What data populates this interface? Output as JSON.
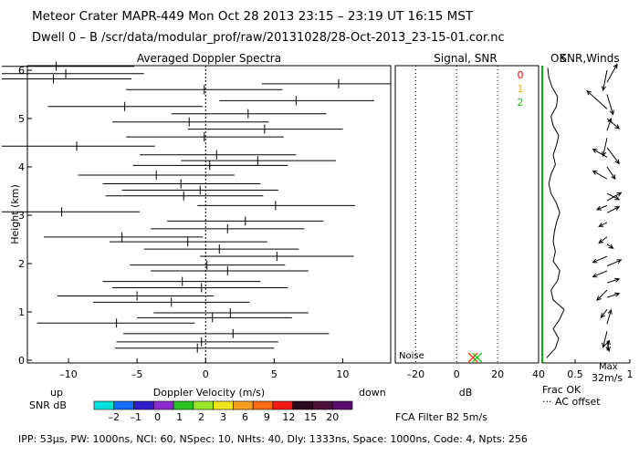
{
  "header": {
    "title_line": "Meteor Crater   MAPR-449   Mon Oct 28 2013 23:15 – 23:19 UT 16:15 MST",
    "dwell_line": "Dwell   0 –   B    /scr/data/modular_prof/raw/20131028/28-Oct-2013_23-15-01.cor.nc"
  },
  "footer": {
    "params_line": "IPP:  53µs,   PW: 1000ns,   NCI:  60,   NSpec: 10,  NHts: 40,   Dly: 1333ns,   Space: 1000ns,   Code: 4,   Npts: 256"
  },
  "colors": {
    "snr_scale": [
      "#00e0e0",
      "#1a6cff",
      "#2e1cc8",
      "#8a2cd0",
      "#29c423",
      "#9ae62a",
      "#f0e31f",
      "#f5a01e",
      "#ff6a15",
      "#f21818",
      "#2a0a1c",
      "#4b0f38",
      "#5a0d6e"
    ],
    "ok_markers": [
      "#ff0000",
      "#ffa500",
      "#22c422"
    ],
    "frac_ok_line": "#00b000"
  },
  "chart_data": [
    {
      "type": "scatter",
      "panel": "doppler",
      "title": "Averaged Doppler Spectra",
      "xlabel": "Doppler Velocity (m/s)",
      "ylabel": "Height (km)",
      "xlim": [
        -13,
        13.5
      ],
      "ylim": [
        0,
        6.15
      ],
      "xticks": [
        -10,
        -5,
        0,
        5,
        10
      ],
      "yticks": [
        0,
        1,
        2,
        3,
        4,
        5,
        6
      ],
      "xtick_labels": [
        "–10",
        "–5",
        "0",
        "5",
        "10"
      ],
      "ytick_labels": [
        "0",
        "1",
        "2",
        "3",
        "4",
        "5",
        "6"
      ],
      "direction_labels": {
        "left": "up",
        "right": "down"
      },
      "points": [
        {
          "h": 0.25,
          "v": -0.6,
          "lo": -6.6,
          "hi": 5.0
        },
        {
          "h": 0.38,
          "v": -0.3,
          "lo": -6.5,
          "hi": 5.3
        },
        {
          "h": 0.55,
          "v": 2.0,
          "lo": -6.0,
          "hi": 9.0
        },
        {
          "h": 0.77,
          "v": -6.5,
          "lo": -12.3,
          "hi": -0.8
        },
        {
          "h": 0.88,
          "v": 0.5,
          "lo": -5.0,
          "hi": 6.3
        },
        {
          "h": 0.98,
          "v": 1.8,
          "lo": -3.8,
          "hi": 7.5
        },
        {
          "h": 1.2,
          "v": -2.5,
          "lo": -8.2,
          "hi": 3.2
        },
        {
          "h": 1.33,
          "v": -5.0,
          "lo": -10.8,
          "hi": 0.6
        },
        {
          "h": 1.5,
          "v": -0.3,
          "lo": -6.8,
          "hi": 6.0
        },
        {
          "h": 1.63,
          "v": -1.7,
          "lo": -7.5,
          "hi": 4.0
        },
        {
          "h": 1.85,
          "v": 1.6,
          "lo": -4.0,
          "hi": 7.5
        },
        {
          "h": 1.97,
          "v": 0.1,
          "lo": -5.5,
          "hi": 5.8
        },
        {
          "h": 2.15,
          "v": 5.2,
          "lo": -0.4,
          "hi": 10.8
        },
        {
          "h": 2.3,
          "v": 1.0,
          "lo": -4.5,
          "hi": 6.8
        },
        {
          "h": 2.45,
          "v": -1.3,
          "lo": -7.0,
          "hi": 4.5
        },
        {
          "h": 2.55,
          "v": -6.1,
          "lo": -11.8,
          "hi": -0.2
        },
        {
          "h": 2.72,
          "v": 1.6,
          "lo": -4.0,
          "hi": 7.2
        },
        {
          "h": 2.88,
          "v": 2.9,
          "lo": -2.8,
          "hi": 8.6
        },
        {
          "h": 3.07,
          "v": -10.5,
          "lo": -16.5,
          "hi": -4.8
        },
        {
          "h": 3.2,
          "v": 5.1,
          "lo": -0.6,
          "hi": 10.9
        },
        {
          "h": 3.4,
          "v": -1.6,
          "lo": -7.3,
          "hi": 4.2
        },
        {
          "h": 3.52,
          "v": -0.4,
          "lo": -6.1,
          "hi": 5.3
        },
        {
          "h": 3.65,
          "v": -1.8,
          "lo": -7.5,
          "hi": 4.0
        },
        {
          "h": 3.83,
          "v": -3.6,
          "lo": -9.3,
          "hi": 2.1
        },
        {
          "h": 4.03,
          "v": 0.3,
          "lo": -5.3,
          "hi": 6.0
        },
        {
          "h": 4.13,
          "v": 3.8,
          "lo": -1.8,
          "hi": 9.5
        },
        {
          "h": 4.25,
          "v": 0.8,
          "lo": -4.8,
          "hi": 6.6
        },
        {
          "h": 4.43,
          "v": -9.4,
          "lo": -15.0,
          "hi": -3.7
        },
        {
          "h": 4.62,
          "v": -0.1,
          "lo": -5.8,
          "hi": 5.7
        },
        {
          "h": 4.78,
          "v": 4.3,
          "lo": -1.3,
          "hi": 10.0
        },
        {
          "h": 4.93,
          "v": -1.2,
          "lo": -6.8,
          "hi": 4.6
        },
        {
          "h": 5.1,
          "v": 3.1,
          "lo": -2.5,
          "hi": 8.8
        },
        {
          "h": 5.25,
          "v": -5.9,
          "lo": -11.5,
          "hi": -0.2
        },
        {
          "h": 5.37,
          "v": 6.6,
          "lo": 1.0,
          "hi": 12.3
        },
        {
          "h": 5.6,
          "v": -0.1,
          "lo": -5.8,
          "hi": 5.6
        },
        {
          "h": 5.72,
          "v": 9.7,
          "lo": 4.1,
          "hi": 15.4
        },
        {
          "h": 5.82,
          "v": -11.1,
          "lo": -16.8,
          "hi": -5.4
        },
        {
          "h": 5.93,
          "v": -10.2,
          "lo": -15.8,
          "hi": -4.5
        },
        {
          "h": 6.08,
          "v": -10.9,
          "lo": -16.5,
          "hi": -5.2
        }
      ]
    },
    {
      "type": "line",
      "panel": "snr",
      "title": "Signal, SNR",
      "xlabel": "dB",
      "xlim": [
        -30,
        40
      ],
      "ylim": [
        0,
        6.15
      ],
      "xticks": [
        -20,
        0,
        20,
        40
      ],
      "xtick_labels": [
        "–20",
        "0",
        "20",
        "40"
      ],
      "noise_label": "Noise",
      "noise_markers": [
        {
          "x": 8,
          "color": "#ff3b00"
        },
        {
          "x": 10,
          "color": "#22c422"
        }
      ],
      "ok_labels": [
        "0",
        "1",
        "2"
      ],
      "ok_header": "OK"
    },
    {
      "type": "line",
      "panel": "frac_ok_winds",
      "title": "SNR,Winds",
      "xlabel": "Frac OK",
      "xlim": [
        0.2,
        1.0
      ],
      "xticks": [
        0.5,
        1
      ],
      "xtick_labels": [
        "0.5",
        "1"
      ],
      "legend_dashed": "AC offset",
      "max_label": "Max",
      "max_value_label": "32m/s",
      "frac_ok": [
        {
          "h": 0.05,
          "x": 0.24
        },
        {
          "h": 0.25,
          "x": 0.32
        },
        {
          "h": 0.45,
          "x": 0.35
        },
        {
          "h": 0.65,
          "x": 0.3
        },
        {
          "h": 0.85,
          "x": 0.36
        },
        {
          "h": 1.05,
          "x": 0.4
        },
        {
          "h": 1.25,
          "x": 0.3
        },
        {
          "h": 1.45,
          "x": 0.28
        },
        {
          "h": 1.65,
          "x": 0.34
        },
        {
          "h": 1.85,
          "x": 0.36
        },
        {
          "h": 2.05,
          "x": 0.3
        },
        {
          "h": 2.25,
          "x": 0.32
        },
        {
          "h": 2.45,
          "x": 0.3
        },
        {
          "h": 2.65,
          "x": 0.31
        },
        {
          "h": 2.85,
          "x": 0.33
        },
        {
          "h": 3.05,
          "x": 0.36
        },
        {
          "h": 3.25,
          "x": 0.33
        },
        {
          "h": 3.45,
          "x": 0.28
        },
        {
          "h": 3.65,
          "x": 0.26
        },
        {
          "h": 3.85,
          "x": 0.28
        },
        {
          "h": 4.05,
          "x": 0.32
        },
        {
          "h": 4.25,
          "x": 0.3
        },
        {
          "h": 4.45,
          "x": 0.33
        },
        {
          "h": 4.65,
          "x": 0.35
        },
        {
          "h": 4.85,
          "x": 0.3
        },
        {
          "h": 5.05,
          "x": 0.28
        },
        {
          "h": 5.25,
          "x": 0.33
        },
        {
          "h": 5.45,
          "x": 0.34
        },
        {
          "h": 5.65,
          "x": 0.29
        },
        {
          "h": 5.85,
          "x": 0.26
        },
        {
          "h": 6.05,
          "x": 0.25
        }
      ],
      "wind_vectors": [
        {
          "h": 6.0,
          "u": -0.2,
          "v": 1.0
        },
        {
          "h": 5.75,
          "u": 0.5,
          "v": -0.9
        },
        {
          "h": 5.5,
          "u": 0.3,
          "v": 1.0
        },
        {
          "h": 5.2,
          "u": -1.0,
          "v": -0.9
        },
        {
          "h": 5.0,
          "u": 0.6,
          "v": 0.5
        },
        {
          "h": 4.75,
          "u": 0.2,
          "v": -0.6
        },
        {
          "h": 4.6,
          "u": -0.2,
          "v": 0.9
        },
        {
          "h": 4.4,
          "u": 0.6,
          "v": 0.8
        },
        {
          "h": 4.2,
          "u": -0.7,
          "v": -0.4
        },
        {
          "h": 4.0,
          "u": 0.4,
          "v": 0.6
        },
        {
          "h": 3.75,
          "u": -0.7,
          "v": -0.4
        },
        {
          "h": 3.45,
          "u": 0.6,
          "v": 0.3
        },
        {
          "h": 3.3,
          "u": 0.7,
          "v": -0.4
        },
        {
          "h": 3.2,
          "u": -0.5,
          "v": 0.2
        },
        {
          "h": 3.05,
          "u": 0.6,
          "v": -0.3
        },
        {
          "h": 2.85,
          "u": -0.4,
          "v": 0.2
        },
        {
          "h": 2.55,
          "u": -0.4,
          "v": 0.3
        },
        {
          "h": 2.4,
          "u": 0.3,
          "v": 0.2
        },
        {
          "h": 2.15,
          "u": -0.7,
          "v": 0.3
        },
        {
          "h": 1.95,
          "u": 0.7,
          "v": -0.3
        },
        {
          "h": 1.85,
          "u": -0.7,
          "v": 0.3
        },
        {
          "h": 1.6,
          "u": 0.6,
          "v": -0.2
        },
        {
          "h": 1.45,
          "u": -0.5,
          "v": 0.5
        },
        {
          "h": 1.3,
          "u": 0.6,
          "v": -0.2
        },
        {
          "h": 1.05,
          "u": -0.3,
          "v": 0.4
        },
        {
          "h": 0.75,
          "u": 0.2,
          "v": -0.7
        },
        {
          "h": 0.6,
          "u": -0.2,
          "v": 0.8
        },
        {
          "h": 0.4,
          "u": 0.1,
          "v": 0.5
        },
        {
          "h": 0.2,
          "u": 0.1,
          "v": -0.5
        }
      ]
    },
    {
      "type": "table",
      "panel": "colorbar",
      "title": "SNR dB",
      "labels": [
        "–2",
        "–1",
        "0",
        "1",
        "2",
        "3",
        "6",
        "9",
        "12",
        "15",
        "20"
      ],
      "filter_text": "FCA Filter B2   5m/s"
    }
  ]
}
